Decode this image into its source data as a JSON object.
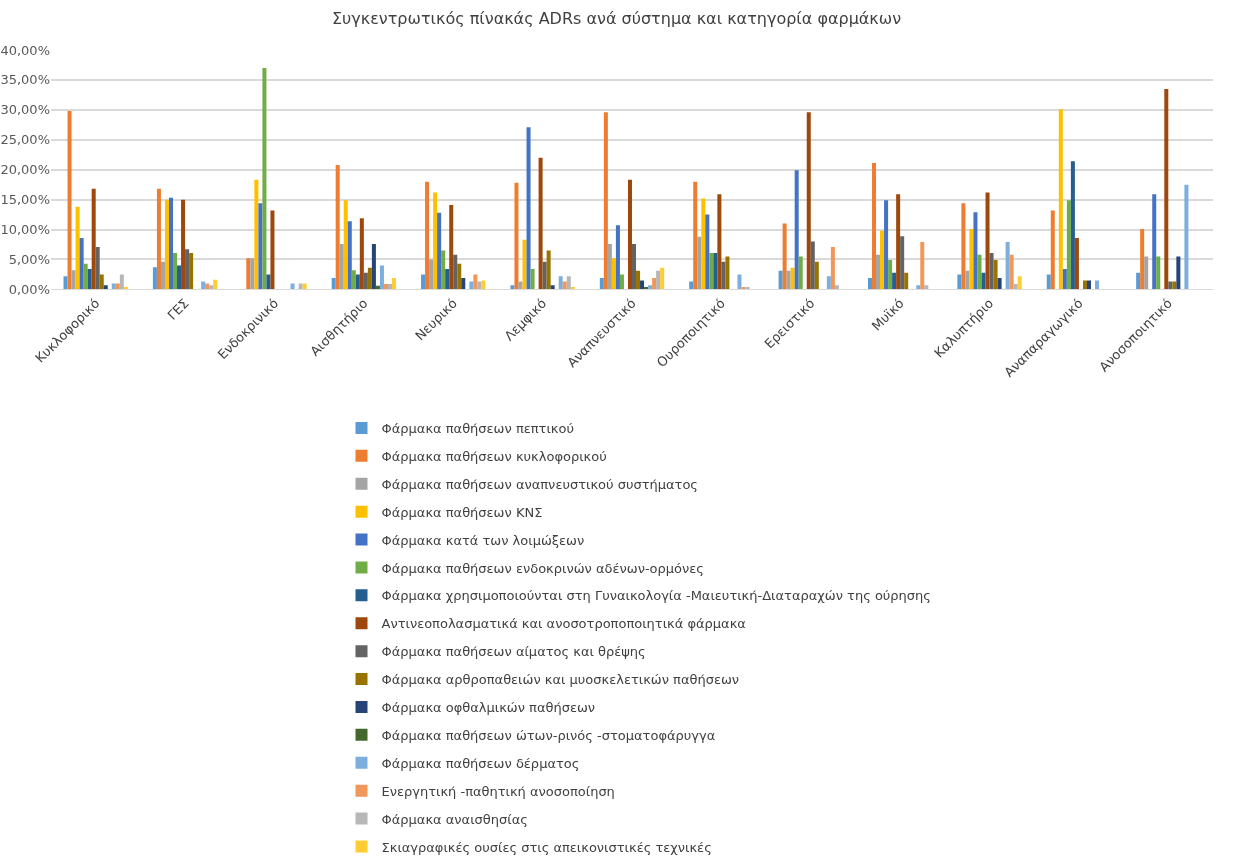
{
  "chart_data": {
    "type": "bar",
    "title": "Συγκεντρωτικός πίνακάς ADRs ανά σύστημα και κατηγορία φαρμάκων",
    "categories": [
      "Κυκλοφορικό",
      "ΓΕΣ",
      "Ενδοκρινικό",
      "Αισθητήριο",
      "Νευρικό",
      "Λεμφικό",
      "Αναπνευστικό",
      "Ουροποιητικό",
      "Ερειστικό",
      "Μυϊκό",
      "Καλυπτήριο",
      "Αναπαραγωγικό",
      "Ανοσοποιητικό"
    ],
    "ylim": [
      0,
      40
    ],
    "yticks": [
      {
        "value": 0,
        "label": "0,00%"
      },
      {
        "value": 5,
        "label": "5,00%"
      },
      {
        "value": 10,
        "label": "10,00%"
      },
      {
        "value": 15,
        "label": "15,00%"
      },
      {
        "value": 20,
        "label": "20,00%"
      },
      {
        "value": 25,
        "label": "25,00%"
      },
      {
        "value": 30,
        "label": "30,00%"
      },
      {
        "value": 35,
        "label": "35,00%"
      },
      {
        "value": 40,
        "label": "40,00%"
      }
    ],
    "grid": "y",
    "legend": "bottom",
    "series": [
      {
        "name": "Φάρμακα παθήσεων πεπτικού",
        "color": "#5b9bd5",
        "values": [
          2.2,
          3.7,
          null,
          1.9,
          2.5,
          0.7,
          1.9,
          1.3,
          3.1,
          1.9,
          2.5,
          2.5,
          2.8
        ]
      },
      {
        "name": "Φάρμακα παθήσεων κυκλοφορικού",
        "color": "#ed7d31",
        "values": [
          29.8,
          16.8,
          5.2,
          20.8,
          18.0,
          17.8,
          29.6,
          18.0,
          11.0,
          21.1,
          14.4,
          13.2,
          10.1
        ]
      },
      {
        "name": "Φάρμακα παθήσεων αναπνευστικού συστήματος",
        "color": "#a5a5a5",
        "values": [
          3.2,
          4.6,
          5.2,
          7.6,
          5.0,
          1.3,
          7.6,
          8.8,
          3.1,
          5.8,
          3.1,
          null,
          5.5
        ]
      },
      {
        "name": "Φάρμακα παθήσεων ΚΝΣ",
        "color": "#ffc000",
        "values": [
          13.8,
          15.0,
          18.3,
          14.9,
          16.2,
          8.3,
          5.2,
          15.2,
          3.6,
          9.8,
          10.1,
          30.1,
          null
        ]
      },
      {
        "name": "Φάρμακα κατά των λοιμώξεων",
        "color": "#4472c4",
        "values": [
          8.6,
          15.3,
          14.4,
          11.4,
          12.8,
          27.1,
          10.7,
          12.5,
          19.9,
          14.9,
          12.9,
          3.4,
          15.9
        ]
      },
      {
        "name": "Φάρμακα παθήσεων ενδοκρινών αδένων-ορμόνες",
        "color": "#70ad47",
        "values": [
          4.3,
          6.1,
          37.0,
          3.2,
          6.5,
          3.4,
          2.5,
          6.1,
          5.5,
          4.9,
          5.8,
          14.9,
          5.5
        ]
      },
      {
        "name": "Φάρμακα χρησιμοποιούνται στη Γυναικολογία -Μαιευτική-Διαταραχών της ούρησης",
        "color": "#255e91",
        "values": [
          3.4,
          4.0,
          2.5,
          2.5,
          3.4,
          null,
          null,
          6.1,
          null,
          2.8,
          2.8,
          21.4,
          null
        ]
      },
      {
        "name": "Αντινεοπολασματικά και ανοσοτροποποιητικά φάρμακα",
        "color": "#9e480e",
        "values": [
          16.8,
          15.0,
          13.2,
          11.9,
          14.1,
          22.0,
          18.3,
          15.9,
          29.6,
          15.9,
          16.2,
          8.6,
          33.5
        ]
      },
      {
        "name": "Φάρμακα παθήσεων αίματος και θρέψης",
        "color": "#636363",
        "values": [
          7.1,
          6.7,
          null,
          2.8,
          5.8,
          4.6,
          7.6,
          4.6,
          8.0,
          8.9,
          6.1,
          null,
          1.3
        ]
      },
      {
        "name": "Φάρμακα αρθροπαθειών και μυοσκελετικών παθήσεων",
        "color": "#997300",
        "values": [
          2.5,
          6.1,
          null,
          3.6,
          4.3,
          6.5,
          3.1,
          5.5,
          4.6,
          2.8,
          4.9,
          1.5,
          1.3
        ]
      },
      {
        "name": "Φάρμακα οφθαλμικών παθήσεων",
        "color": "#264478",
        "values": [
          0.7,
          null,
          null,
          7.6,
          1.9,
          0.7,
          1.5,
          null,
          null,
          null,
          1.9,
          1.5,
          5.5
        ]
      },
      {
        "name": "Φάρμακα παθήσεων ώτων-ρινός -στοματοφάρυγγα",
        "color": "#43682b",
        "values": [
          null,
          null,
          null,
          0.6,
          null,
          null,
          0.4,
          null,
          null,
          null,
          null,
          null,
          null
        ]
      },
      {
        "name": "Φάρμακα παθήσεων δέρματος",
        "color": "#7cafdd",
        "values": [
          1.0,
          1.3,
          1.0,
          4.0,
          1.3,
          2.2,
          0.7,
          2.5,
          2.2,
          0.7,
          7.9,
          1.5,
          17.5
        ]
      },
      {
        "name": "Ενεργητική -παθητική ανοσοποίηση",
        "color": "#f1975a",
        "values": [
          1.0,
          1.0,
          null,
          0.9,
          2.5,
          1.3,
          1.9,
          0.4,
          7.1,
          7.9,
          5.8,
          null,
          null
        ]
      },
      {
        "name": "Φάρμακα αναισθησίας",
        "color": "#b7b7b7",
        "values": [
          2.5,
          0.7,
          1.0,
          0.9,
          1.3,
          2.2,
          3.1,
          0.4,
          0.7,
          0.7,
          0.9,
          null,
          null
        ]
      },
      {
        "name": "Σκιαγραφικές ουσίες στις απεικονιστικές τεχνικές",
        "color": "#ffcd33",
        "values": [
          0.4,
          1.6,
          1.0,
          1.9,
          1.5,
          0.4,
          3.6,
          null,
          null,
          null,
          2.2,
          null,
          null
        ]
      }
    ]
  }
}
